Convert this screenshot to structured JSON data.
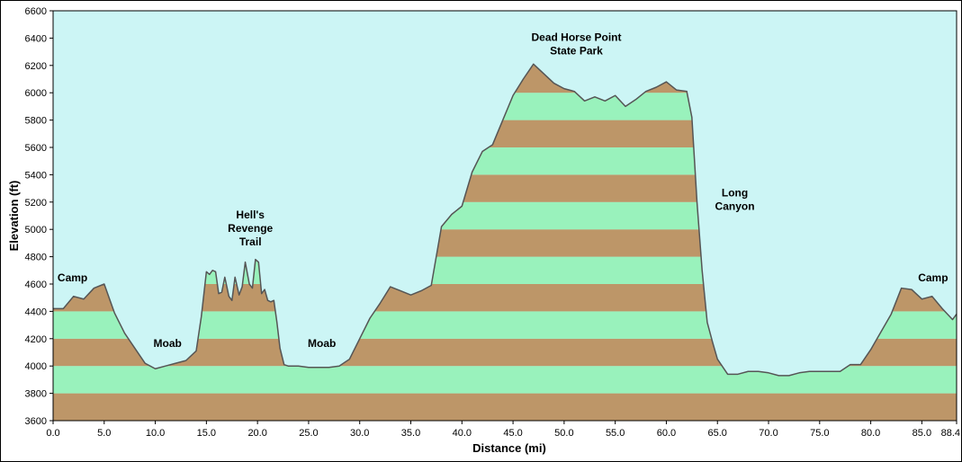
{
  "chart_data": {
    "type": "area",
    "title": "",
    "xlabel": "Distance   (mi)",
    "ylabel": "Elevation (ft)",
    "xlim": [
      0,
      88.4
    ],
    "ylim": [
      3600,
      6600
    ],
    "x_ticks": [
      0,
      5,
      10,
      15,
      20,
      25,
      30,
      35,
      40,
      45,
      50,
      55,
      60,
      65,
      70,
      75,
      80,
      85,
      88.4
    ],
    "x_tick_labels": [
      "0.0",
      "5.0",
      "10.0",
      "15.0",
      "20.0",
      "25.0",
      "30.0",
      "35.0",
      "40.0",
      "45.0",
      "50.0",
      "55.0",
      "60.0",
      "65.0",
      "70.0",
      "75.0",
      "80.0",
      "85.0",
      "88.4"
    ],
    "y_ticks": [
      3600,
      3800,
      4000,
      4200,
      4400,
      4600,
      4800,
      5000,
      5200,
      5400,
      5600,
      5800,
      6000,
      6200,
      6400,
      6600
    ],
    "grid": false,
    "legend": "none",
    "band_interval_ft": 200,
    "colors": {
      "background": "#ccf5f5",
      "band_brown": "#bd9668",
      "band_green": "#99f2bc",
      "profile_line": "#555555",
      "frame": "#000000"
    },
    "series": [
      {
        "x": [
          0,
          1,
          2,
          3,
          4,
          5,
          6,
          7,
          8,
          9,
          10,
          11,
          12,
          13,
          14,
          14.5,
          15,
          15.3,
          15.6,
          15.9,
          16.2,
          16.5,
          16.8,
          17.2,
          17.5,
          17.8,
          18.2,
          18.5,
          18.8,
          19.2,
          19.5,
          19.8,
          20.1,
          20.4,
          20.7,
          21.0,
          21.3,
          21.6,
          21.9,
          22.2,
          22.6,
          23.0,
          24,
          25,
          26,
          27,
          28,
          29,
          30,
          31,
          32,
          33,
          34,
          35,
          36,
          37,
          38,
          39,
          40,
          41,
          42,
          43,
          44,
          45,
          46,
          47,
          48,
          49,
          50,
          51,
          52,
          53,
          54,
          55,
          56,
          57,
          58,
          59,
          60,
          61,
          62,
          62.5,
          63,
          63.5,
          64,
          64.5,
          65,
          66,
          67,
          68,
          69,
          70,
          71,
          72,
          73,
          74,
          75,
          76,
          77,
          78,
          79,
          80,
          81,
          82,
          83,
          84,
          85,
          86,
          87,
          88,
          88.4
        ],
        "y": [
          4420,
          4420,
          4510,
          4490,
          4570,
          4600,
          4390,
          4240,
          4130,
          4020,
          3980,
          4000,
          4020,
          4040,
          4110,
          4360,
          4690,
          4670,
          4700,
          4690,
          4530,
          4540,
          4650,
          4510,
          4480,
          4650,
          4520,
          4580,
          4760,
          4600,
          4570,
          4780,
          4760,
          4530,
          4560,
          4480,
          4470,
          4480,
          4320,
          4130,
          4010,
          4000,
          4000,
          3990,
          3990,
          3990,
          4000,
          4050,
          4200,
          4350,
          4460,
          4580,
          4550,
          4520,
          4550,
          4590,
          5020,
          5110,
          5170,
          5420,
          5570,
          5620,
          5800,
          5980,
          6100,
          6210,
          6140,
          6070,
          6030,
          6010,
          5940,
          5970,
          5940,
          5980,
          5900,
          5950,
          6010,
          6040,
          6080,
          6020,
          6010,
          5820,
          5200,
          4700,
          4320,
          4180,
          4050,
          3940,
          3940,
          3960,
          3960,
          3950,
          3930,
          3930,
          3950,
          3960,
          3960,
          3960,
          3960,
          4010,
          4010,
          4120,
          4250,
          4380,
          4570,
          4560,
          4490,
          4510,
          4420,
          4340,
          4380
        ]
      }
    ],
    "annotations": [
      {
        "lines": [
          "Camp"
        ],
        "x": 1.9,
        "y": 4620
      },
      {
        "lines": [
          "Moab"
        ],
        "x": 11.2,
        "y": 4140
      },
      {
        "lines": [
          "Hell's",
          "Revenge",
          "Trail"
        ],
        "x": 19.3,
        "y": 5080
      },
      {
        "lines": [
          "Moab"
        ],
        "x": 26.3,
        "y": 4140
      },
      {
        "lines": [
          "Dead Horse Point",
          "State Park"
        ],
        "x": 51.2,
        "y": 6380
      },
      {
        "lines": [
          "Long",
          "Canyon"
        ],
        "x": 66.7,
        "y": 5240
      },
      {
        "lines": [
          "Camp"
        ],
        "x": 86.1,
        "y": 4620
      }
    ]
  }
}
